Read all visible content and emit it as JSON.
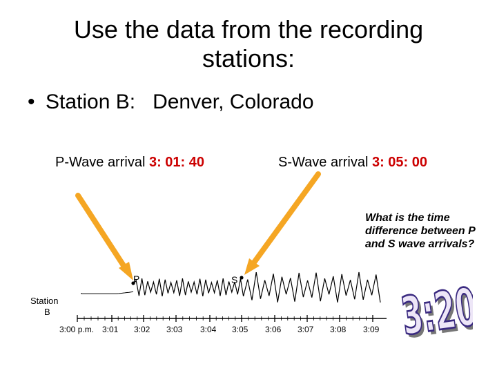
{
  "slide": {
    "title_line1": "Use the data from the recording",
    "title_line2": "stations:",
    "bullet": "Station B:   Denver, Colorado",
    "p_wave": {
      "label": "P-Wave arrival ",
      "time": "3: 01: 40"
    },
    "s_wave": {
      "label": "S-Wave arrival ",
      "time": "3: 05: 00"
    },
    "question": "What is the time difference between P and S wave arrivals?",
    "answer": "3:20"
  },
  "seismogram": {
    "station_label_line1": "Station",
    "station_label_line2": "B",
    "p_marker": "P",
    "s_marker": "S",
    "tick_labels": [
      "3:00 p.m.",
      "3:01",
      "3:02",
      "3:03",
      "3:04",
      "3:05",
      "3:06",
      "3:07",
      "3:08",
      "3:09"
    ],
    "arrow_color": "#f5a623",
    "answer_fill": "#ede6f7",
    "answer_stroke": "#3a2a80"
  }
}
